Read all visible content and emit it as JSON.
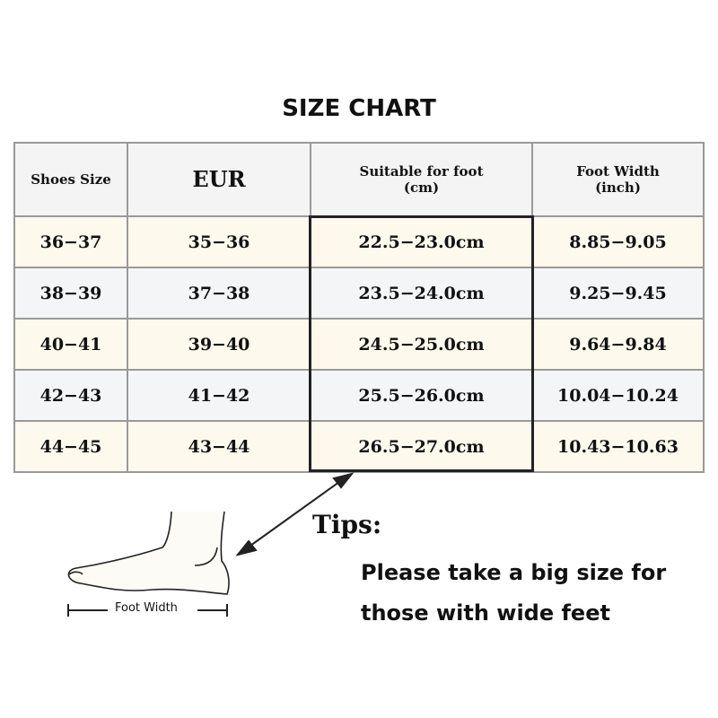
{
  "title": "SIZE CHART",
  "headers": [
    "Shoes Size",
    "EUR",
    "Suitable for foot\n(cm)",
    "Foot Width\n(inch)"
  ],
  "header_lines": {
    "foot_1": "Suitable for foot",
    "foot_2": "(cm)",
    "width_1": "Foot Width",
    "width_2": "(inch)"
  },
  "rows": [
    [
      "36−37",
      "35−36",
      "22.5−23.0cm",
      "8.85−9.05"
    ],
    [
      "38−39",
      "37−38",
      "23.5−24.0cm",
      "9.25−9.45"
    ],
    [
      "40−41",
      "39−40",
      "24.5−25.0cm",
      "9.64−9.84"
    ],
    [
      "42−43",
      "41−42",
      "25.5−26.0cm",
      "10.04−10.24"
    ],
    [
      "44−45",
      "43−44",
      "26.5−27.0cm",
      "10.43−10.63"
    ]
  ],
  "foot_label": "Foot Width",
  "tips_label": "Tips:",
  "tips_lines": [
    "Please take a big size for",
    "those with wide feet"
  ],
  "colors": {
    "row_cream": "#fdf9ec",
    "row_gray": "#f4f5f6",
    "header": "#f4f4f4"
  }
}
